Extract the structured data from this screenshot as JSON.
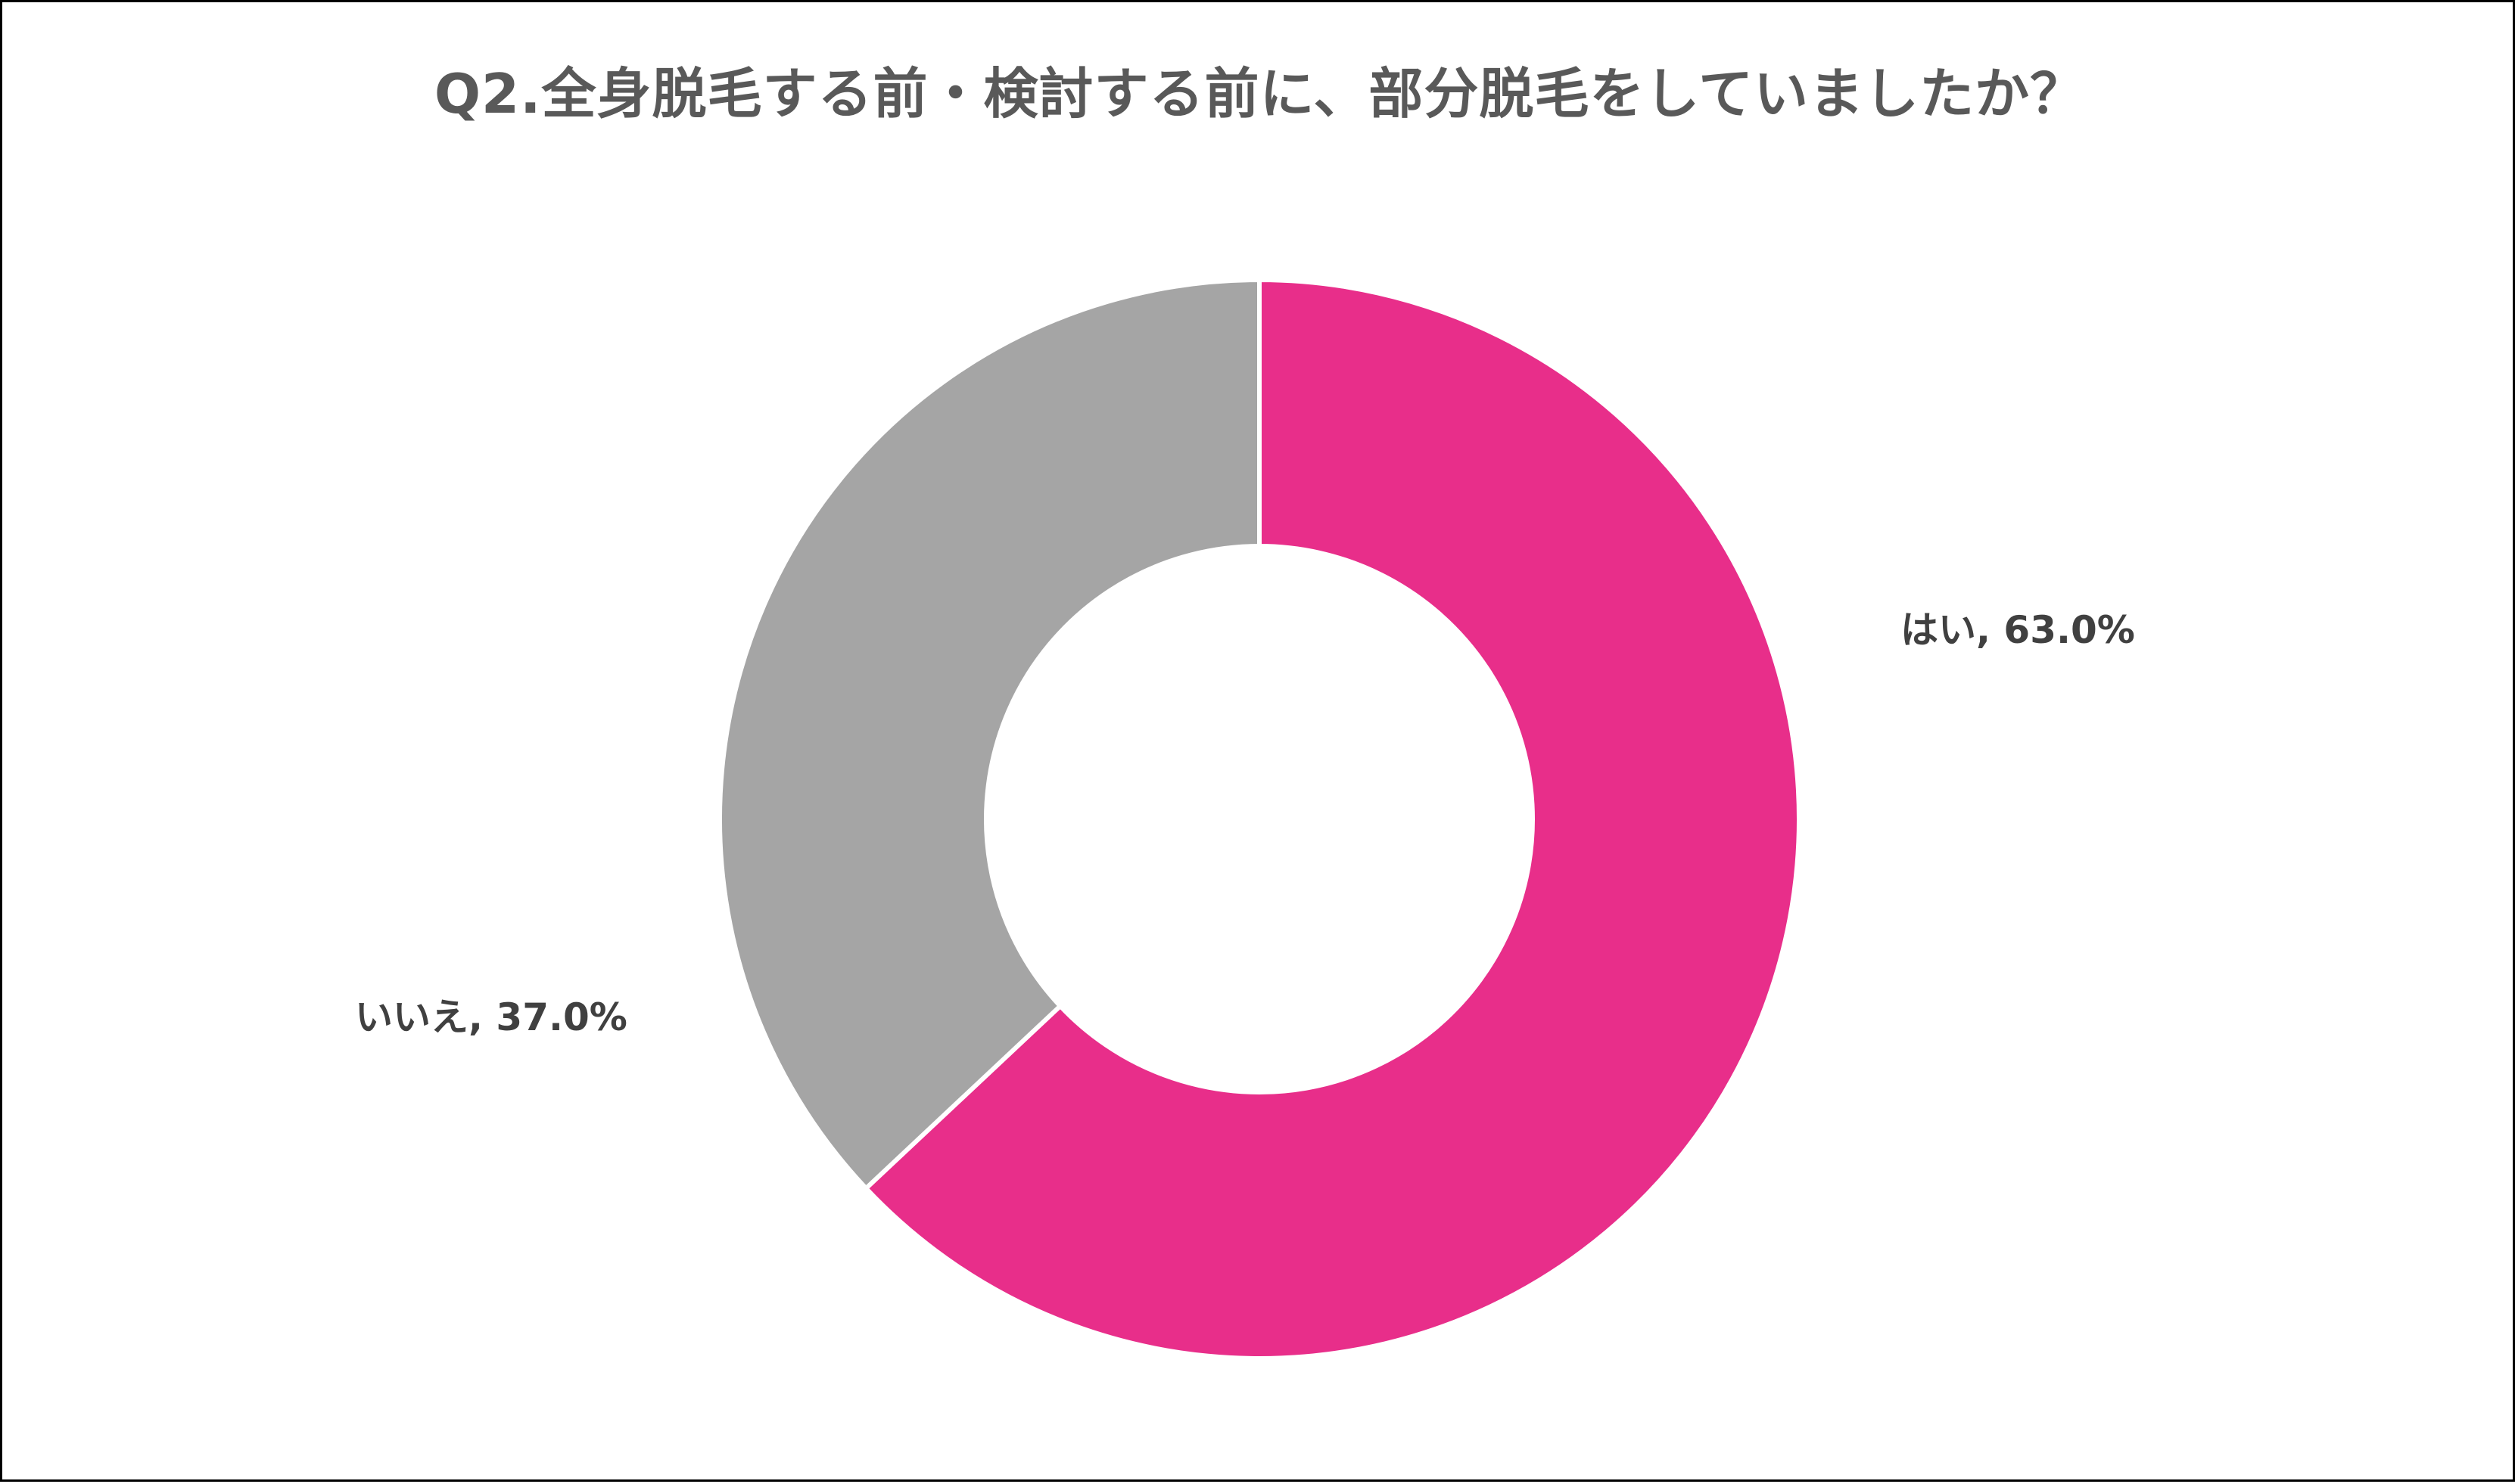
{
  "chart": {
    "title": "Q2.全身脱毛する前・検討する前に、部分脱毛をしていましたか？",
    "labels": {
      "yes": "はい, 63.0%",
      "no": "いいえ, 37.0%"
    }
  },
  "colors": {
    "yes": "#E82E8A",
    "no": "#A5A5A5",
    "title": "#595959",
    "label": "#404040"
  },
  "chart_data": {
    "type": "pie",
    "subtype": "donut",
    "title": "Q2.全身脱毛する前・検討する前に、部分脱毛をしていましたか？",
    "categories": [
      "はい",
      "いいえ"
    ],
    "values": [
      63.0,
      37.0
    ],
    "unit": "%",
    "colors": [
      "#E82E8A",
      "#A5A5A5"
    ],
    "data_labels": [
      "はい, 63.0%",
      "いいえ, 37.0%"
    ],
    "start_angle_deg": 0,
    "direction": "clockwise",
    "legend": "none"
  }
}
